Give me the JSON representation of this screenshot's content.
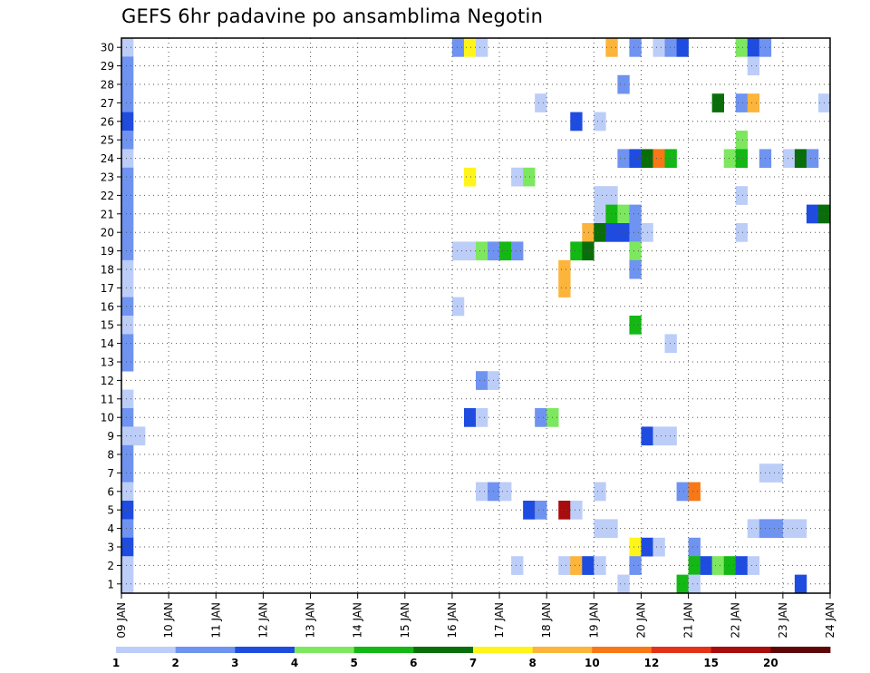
{
  "chart_data": {
    "type": "heatmap",
    "title": "GEFS 6hr padavine po ansamblima Negotin",
    "xlabel": "",
    "ylabel": "",
    "x_ticks": [
      "09 JAN",
      "10 JAN",
      "11 JAN",
      "12 JAN",
      "13 JAN",
      "14 JAN",
      "15 JAN",
      "16 JAN",
      "17 JAN",
      "18 JAN",
      "19 JAN",
      "20 JAN",
      "21 JAN",
      "22 JAN",
      "23 JAN",
      "24 JAN"
    ],
    "y_ticks": [
      "1",
      "2",
      "3",
      "4",
      "5",
      "6",
      "7",
      "8",
      "9",
      "10",
      "11",
      "12",
      "13",
      "14",
      "15",
      "16",
      "17",
      "18",
      "19",
      "20",
      "21",
      "22",
      "23",
      "24",
      "25",
      "26",
      "27",
      "28",
      "29",
      "30"
    ],
    "x_range_days": [
      0,
      15
    ],
    "y_range": [
      0,
      30
    ],
    "steps_per_day": 4,
    "grid": true,
    "legend_position": "bottom",
    "legend": {
      "colors": [
        "#bccdf8",
        "#6f93f0",
        "#1f4ce0",
        "#7de85f",
        "#14b814",
        "#096e09",
        "#fff51a",
        "#fcb43a",
        "#f87716",
        "#e33217",
        "#a80c0c",
        "#5e0505"
      ],
      "labels": [
        "1",
        "2",
        "3",
        "4",
        "5",
        "6",
        "7",
        "8",
        "10",
        "12",
        "15",
        "20"
      ]
    },
    "cells": [
      [
        30,
        0,
        0
      ],
      [
        29,
        0,
        1
      ],
      [
        28,
        0,
        1
      ],
      [
        27,
        0,
        1
      ],
      [
        26,
        0,
        2
      ],
      [
        25,
        0,
        1
      ],
      [
        24,
        0,
        0
      ],
      [
        23,
        0,
        1
      ],
      [
        22,
        0,
        1
      ],
      [
        21,
        0,
        1
      ],
      [
        20,
        0,
        1
      ],
      [
        19,
        0,
        1
      ],
      [
        18,
        0,
        0
      ],
      [
        17,
        0,
        0
      ],
      [
        16,
        0,
        1
      ],
      [
        15,
        0,
        0
      ],
      [
        14,
        0,
        1
      ],
      [
        13,
        0,
        1
      ],
      [
        11,
        0,
        0
      ],
      [
        10,
        0,
        1
      ],
      [
        9,
        0,
        0
      ],
      [
        9,
        1,
        0
      ],
      [
        8,
        0,
        1
      ],
      [
        7,
        0,
        1
      ],
      [
        6,
        0,
        0
      ],
      [
        5,
        0,
        2
      ],
      [
        4,
        0,
        1
      ],
      [
        3,
        0,
        2
      ],
      [
        2,
        0,
        0
      ],
      [
        1,
        0,
        0
      ],
      [
        30,
        28,
        1
      ],
      [
        30,
        29,
        6
      ],
      [
        30,
        30,
        0
      ],
      [
        30,
        41,
        7
      ],
      [
        30,
        43,
        1
      ],
      [
        30,
        45,
        0
      ],
      [
        30,
        46,
        1
      ],
      [
        30,
        47,
        2
      ],
      [
        30,
        52,
        3
      ],
      [
        30,
        53,
        2
      ],
      [
        30,
        54,
        1
      ],
      [
        29,
        53,
        0
      ],
      [
        28,
        42,
        1
      ],
      [
        27,
        35,
        0
      ],
      [
        27,
        50,
        5
      ],
      [
        27,
        52,
        1
      ],
      [
        27,
        53,
        7
      ],
      [
        27,
        59,
        0
      ],
      [
        26,
        38,
        2
      ],
      [
        26,
        40,
        0
      ],
      [
        25,
        52,
        3
      ],
      [
        24,
        42,
        1
      ],
      [
        24,
        43,
        2
      ],
      [
        24,
        44,
        5
      ],
      [
        24,
        45,
        8
      ],
      [
        24,
        46,
        4
      ],
      [
        24,
        51,
        3
      ],
      [
        24,
        52,
        4
      ],
      [
        24,
        54,
        1
      ],
      [
        24,
        56,
        0
      ],
      [
        24,
        57,
        5
      ],
      [
        24,
        58,
        1
      ],
      [
        23,
        29,
        6
      ],
      [
        23,
        33,
        0
      ],
      [
        23,
        34,
        3
      ],
      [
        22,
        52,
        0
      ],
      [
        22,
        40,
        0
      ],
      [
        22,
        41,
        0
      ],
      [
        21,
        40,
        0
      ],
      [
        21,
        41,
        4
      ],
      [
        21,
        42,
        3
      ],
      [
        21,
        43,
        1
      ],
      [
        21,
        58,
        2
      ],
      [
        21,
        59,
        5
      ],
      [
        20,
        39,
        7
      ],
      [
        20,
        40,
        5
      ],
      [
        20,
        41,
        2
      ],
      [
        20,
        42,
        2
      ],
      [
        20,
        43,
        1
      ],
      [
        20,
        44,
        0
      ],
      [
        20,
        52,
        0
      ],
      [
        19,
        38,
        4
      ],
      [
        19,
        39,
        5
      ],
      [
        19,
        43,
        3
      ],
      [
        19,
        28,
        0
      ],
      [
        19,
        29,
        0
      ],
      [
        19,
        30,
        3
      ],
      [
        19,
        31,
        1
      ],
      [
        19,
        32,
        4
      ],
      [
        19,
        33,
        1
      ],
      [
        18,
        43,
        1
      ],
      [
        18,
        37,
        7
      ],
      [
        17,
        37,
        7
      ],
      [
        16,
        28,
        0
      ],
      [
        15,
        43,
        4
      ],
      [
        14,
        46,
        0
      ],
      [
        12,
        30,
        1
      ],
      [
        12,
        31,
        0
      ],
      [
        10,
        29,
        2
      ],
      [
        10,
        30,
        0
      ],
      [
        10,
        35,
        1
      ],
      [
        10,
        36,
        3
      ],
      [
        9,
        44,
        2
      ],
      [
        9,
        45,
        0
      ],
      [
        9,
        46,
        0
      ],
      [
        7,
        54,
        0
      ],
      [
        7,
        55,
        0
      ],
      [
        6,
        30,
        0
      ],
      [
        6,
        31,
        1
      ],
      [
        6,
        32,
        0
      ],
      [
        6,
        40,
        0
      ],
      [
        6,
        47,
        1
      ],
      [
        6,
        48,
        8
      ],
      [
        5,
        34,
        2
      ],
      [
        5,
        35,
        1
      ],
      [
        5,
        37,
        10
      ],
      [
        5,
        38,
        0
      ],
      [
        4,
        40,
        0
      ],
      [
        4,
        41,
        0
      ],
      [
        4,
        53,
        0
      ],
      [
        4,
        54,
        1
      ],
      [
        4,
        55,
        1
      ],
      [
        4,
        56,
        0
      ],
      [
        4,
        57,
        0
      ],
      [
        3,
        43,
        6
      ],
      [
        3,
        44,
        2
      ],
      [
        3,
        45,
        0
      ],
      [
        3,
        48,
        1
      ],
      [
        2,
        33,
        0
      ],
      [
        2,
        37,
        0
      ],
      [
        2,
        38,
        7
      ],
      [
        2,
        39,
        2
      ],
      [
        2,
        40,
        0
      ],
      [
        2,
        43,
        1
      ],
      [
        2,
        48,
        4
      ],
      [
        2,
        49,
        2
      ],
      [
        2,
        50,
        3
      ],
      [
        2,
        51,
        4
      ],
      [
        2,
        52,
        2
      ],
      [
        2,
        53,
        0
      ],
      [
        1,
        42,
        0
      ],
      [
        1,
        47,
        4
      ],
      [
        1,
        48,
        0
      ],
      [
        1,
        57,
        2
      ]
    ]
  }
}
